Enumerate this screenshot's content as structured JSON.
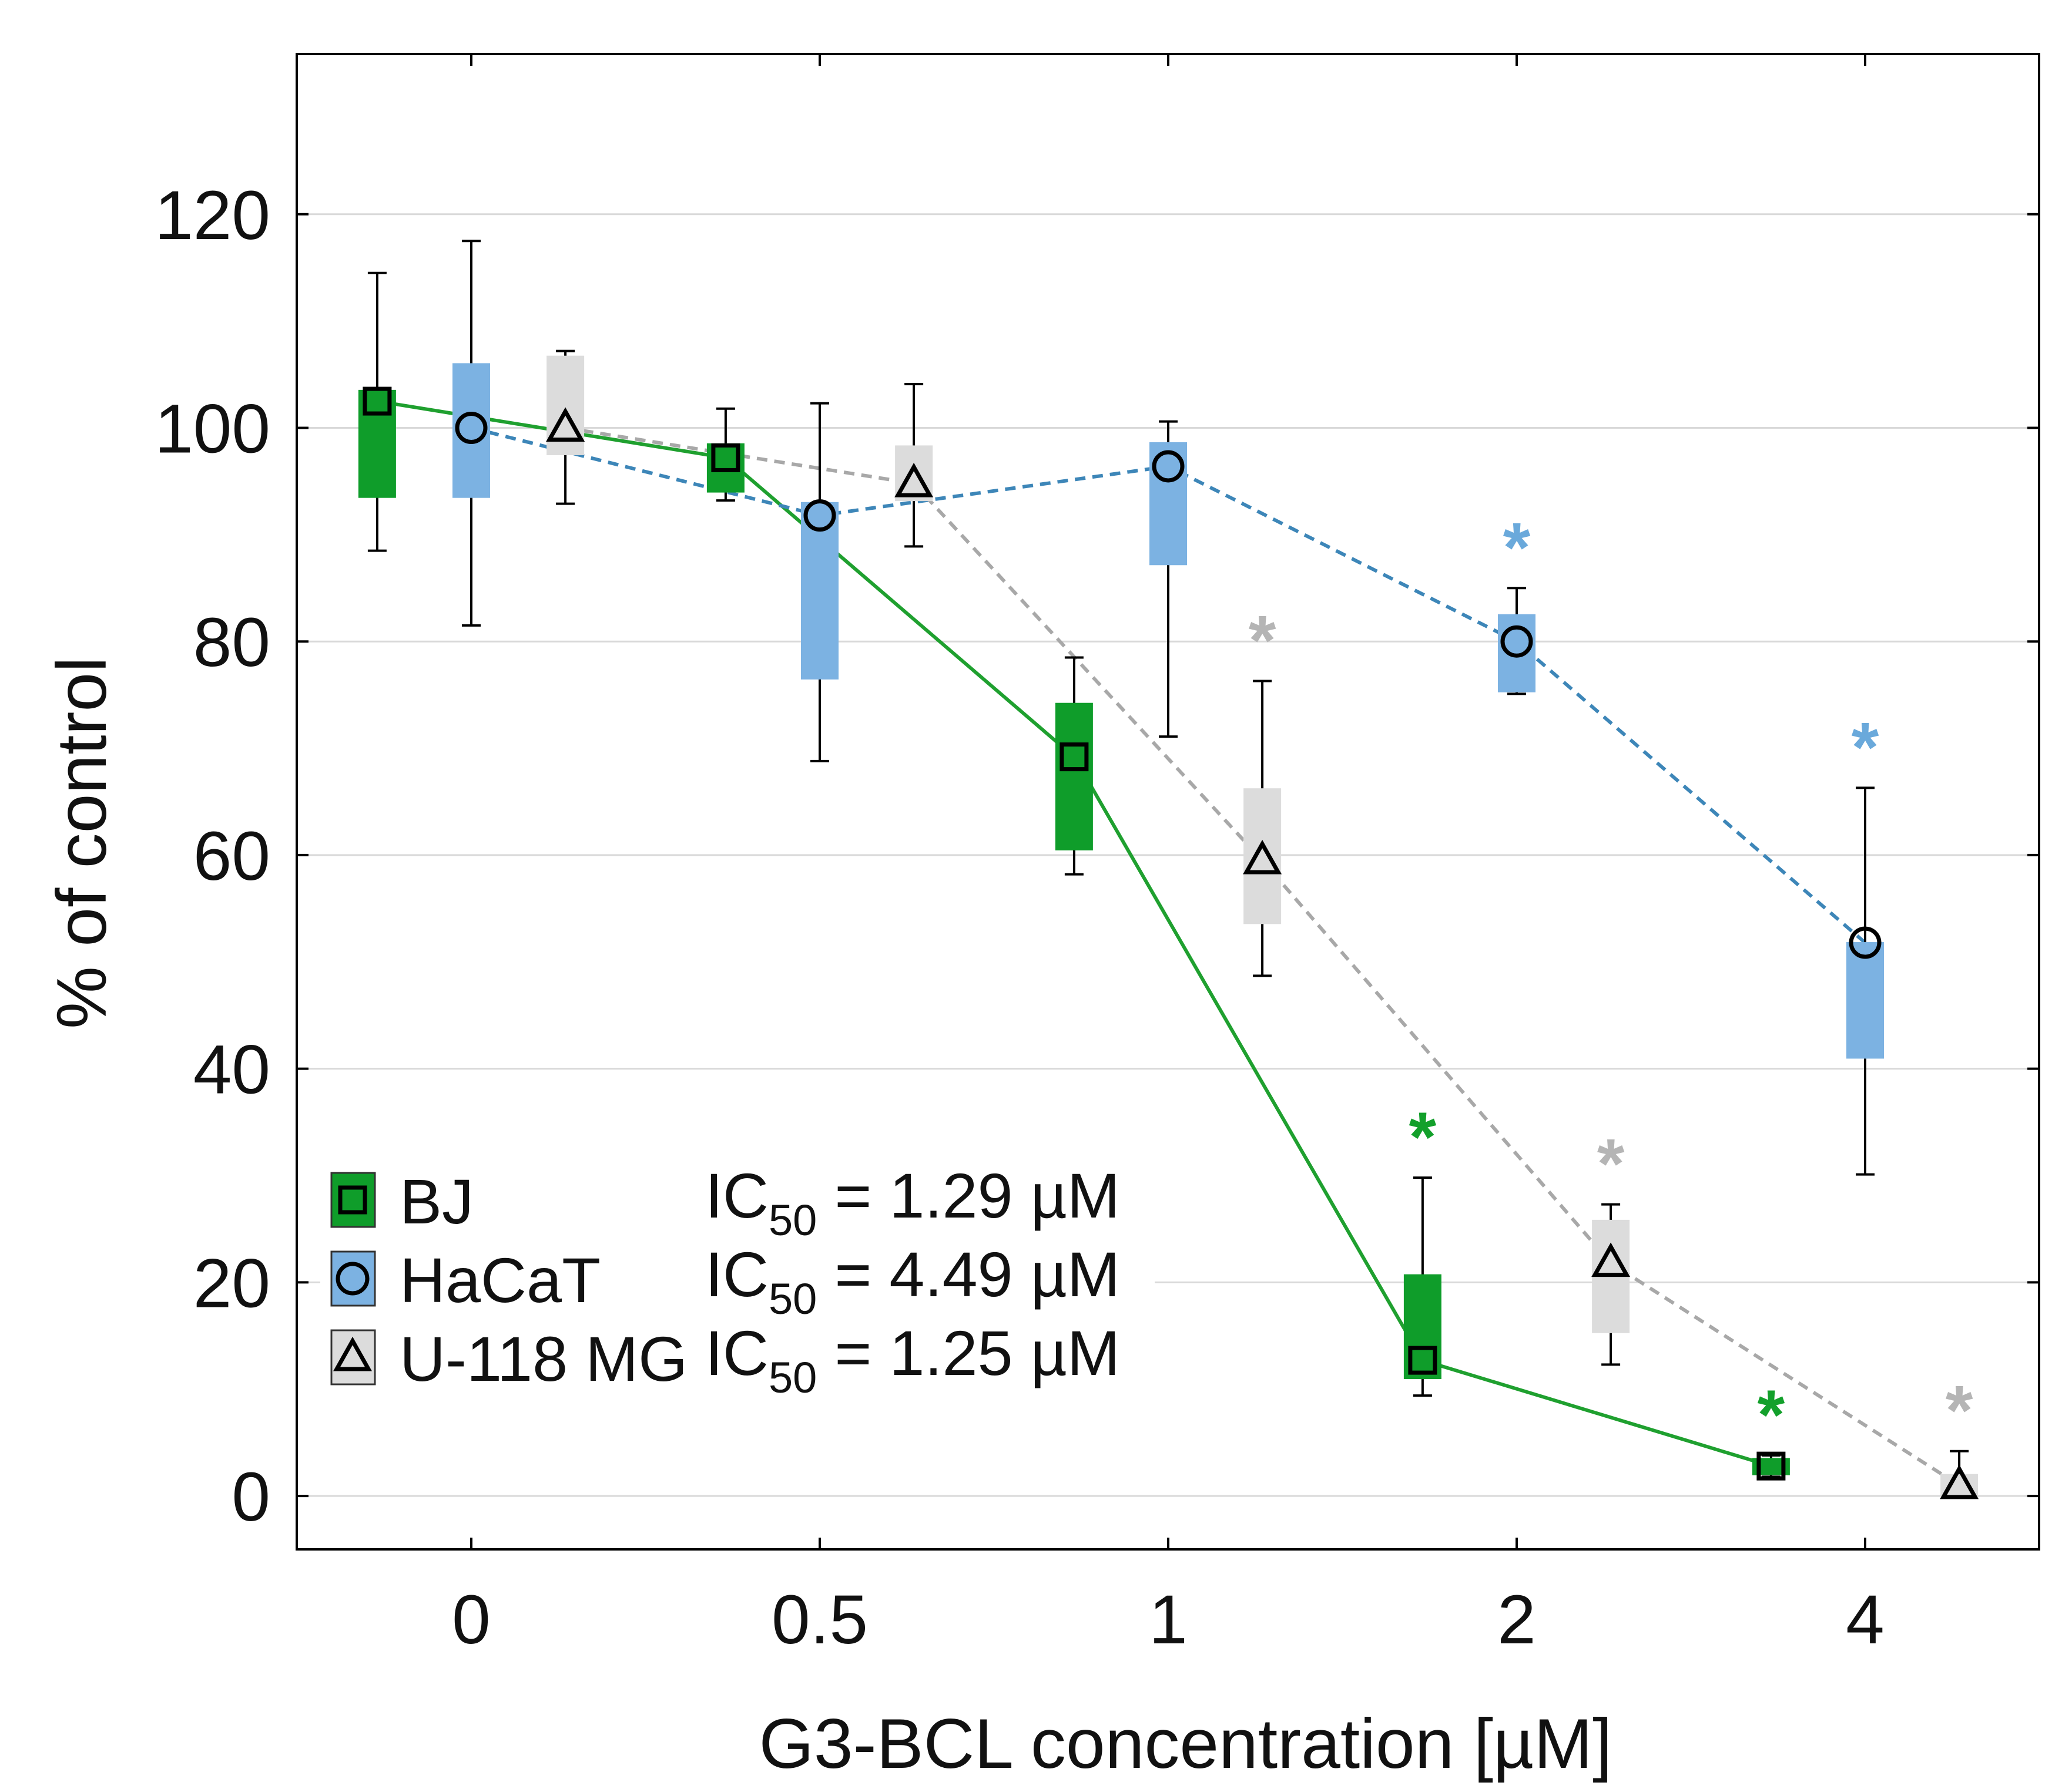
{
  "chart_data": {
    "type": "box",
    "xlabel": "G3-BCL concentration [µM]",
    "ylabel": "% of control",
    "categories": [
      "0",
      "0.5",
      "1",
      "2",
      "4"
    ],
    "ylim": [
      -5,
      135
    ],
    "yticks": [
      0,
      20,
      40,
      60,
      80,
      100,
      120
    ],
    "grid": true,
    "legend_position": "bottom-left",
    "series": [
      {
        "name": "BJ",
        "ic50_label": "IC",
        "ic50_sub": "50",
        "ic50_value": " = 1.29 µM",
        "color": "#0f9d2a",
        "line_color": "#1fa02f",
        "marker": "square",
        "line_style": "solid",
        "offset": -0.27,
        "boxes": [
          {
            "x": 0,
            "median": 102.5,
            "q1": 93.5,
            "q3": 103.5,
            "min": 88.5,
            "max": 114.5,
            "sig": false
          },
          {
            "x": 1,
            "median": 97.2,
            "q1": 94.0,
            "q3": 98.5,
            "min": 93.2,
            "max": 101.8,
            "sig": false
          },
          {
            "x": 2,
            "median": 69.2,
            "q1": 60.5,
            "q3": 74.2,
            "min": 58.2,
            "max": 78.5,
            "sig": false
          },
          {
            "x": 3,
            "median": 12.7,
            "q1": 11.0,
            "q3": 20.7,
            "min": 9.4,
            "max": 29.8,
            "sig": true
          },
          {
            "x": 4,
            "median": 2.8,
            "q1": 2.0,
            "q3": 3.5,
            "min": 1.8,
            "max": 3.8,
            "sig": true
          }
        ]
      },
      {
        "name": "HaCaT",
        "ic50_label": "IC",
        "ic50_sub": "50",
        "ic50_value": " = 4.49 µM",
        "color": "#7cb2e2",
        "line_color": "#3d86b8",
        "marker": "circle",
        "line_style": "dashed",
        "offset": 0.0,
        "boxes": [
          {
            "x": 0,
            "median": 100.0,
            "q1": 93.5,
            "q3": 106.0,
            "min": 81.5,
            "max": 117.5,
            "sig": false
          },
          {
            "x": 1,
            "median": 91.8,
            "q1": 76.5,
            "q3": 93.0,
            "min": 68.8,
            "max": 102.3,
            "sig": false
          },
          {
            "x": 2,
            "median": 96.4,
            "q1": 87.2,
            "q3": 98.6,
            "min": 71.1,
            "max": 100.6,
            "sig": false
          },
          {
            "x": 3,
            "median": 80.0,
            "q1": 75.3,
            "q3": 82.5,
            "min": 75.1,
            "max": 85.0,
            "sig": true
          },
          {
            "x": 4,
            "median": 51.8,
            "q1": 41.0,
            "q3": 51.8,
            "min": 30.1,
            "max": 66.3,
            "sig": true
          }
        ]
      },
      {
        "name": "U-118 MG",
        "ic50_label": "IC",
        "ic50_sub": "50",
        "ic50_value": " = 1.25 µM",
        "color": "#dcdcdc",
        "line_color": "#a8a8a8",
        "marker": "triangle",
        "line_style": "dashed",
        "offset": 0.27,
        "boxes": [
          {
            "x": 0,
            "median": 100.0,
            "q1": 97.5,
            "q3": 106.7,
            "min": 92.9,
            "max": 107.2,
            "sig": false
          },
          {
            "x": 1,
            "median": 94.8,
            "q1": 93.2,
            "q3": 98.3,
            "min": 88.9,
            "max": 104.1,
            "sig": false
          },
          {
            "x": 2,
            "median": 59.5,
            "q1": 53.6,
            "q3": 66.2,
            "min": 48.7,
            "max": 76.3,
            "sig": true
          },
          {
            "x": 3,
            "median": 21.8,
            "q1": 15.3,
            "q3": 25.8,
            "min": 12.3,
            "max": 27.3,
            "sig": true
          },
          {
            "x": 4,
            "median": 1.0,
            "q1": 0.0,
            "q3": 2.0,
            "min": 0.0,
            "max": 4.2,
            "sig": true
          }
        ]
      }
    ],
    "significance_symbol": "*"
  }
}
